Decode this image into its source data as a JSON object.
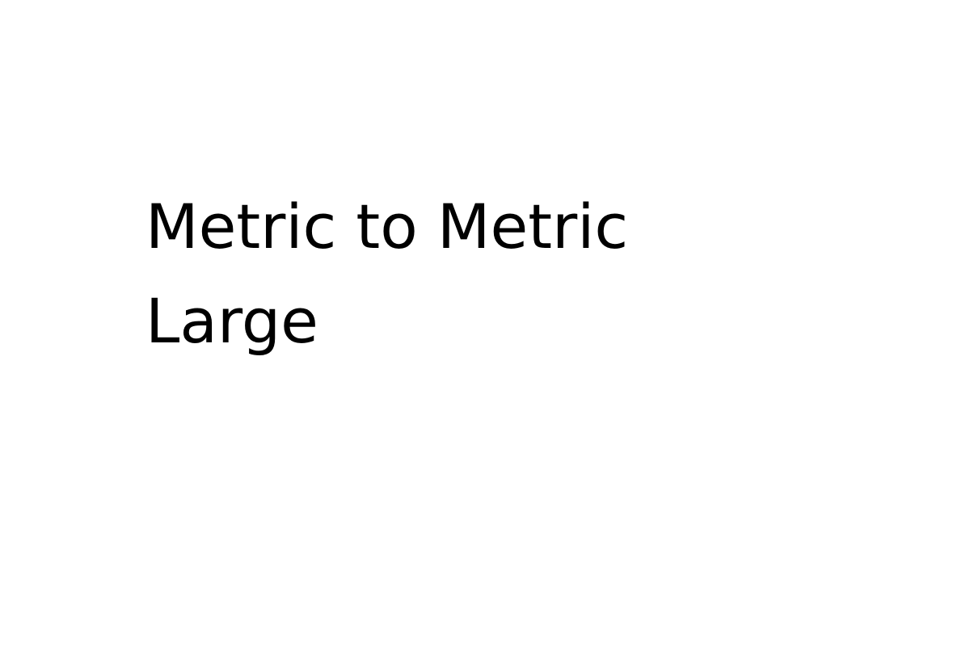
{
  "title": {
    "line1": "Metric to Metric",
    "line2": "Large"
  },
  "colors": {
    "background": "#ffffff",
    "text": "#000000"
  }
}
